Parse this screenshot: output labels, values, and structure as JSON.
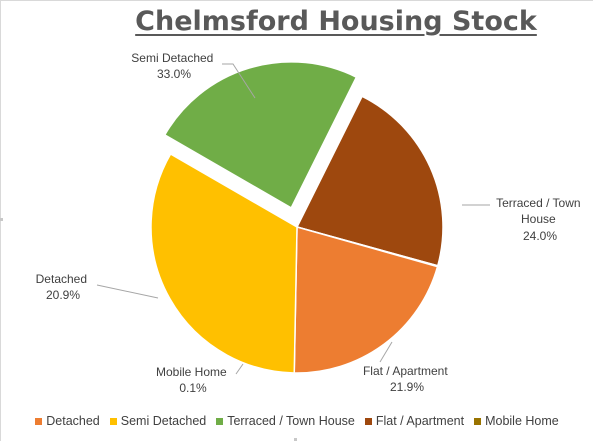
{
  "chart_data": {
    "type": "pie",
    "title": "Chelmsford Housing Stock",
    "slices": [
      {
        "label": "Detached",
        "value": 20.9,
        "value_label": "20.9%",
        "color": "#ED7D31"
      },
      {
        "label": "Semi Detached",
        "value": 33.0,
        "value_label": "33.0%",
        "color": "#FFC000"
      },
      {
        "label": "Terraced / Town House",
        "value": 24.0,
        "value_label": "24.0%",
        "color": "#70AD47",
        "exploded": true
      },
      {
        "label": "Flat / Apartment",
        "value": 21.9,
        "value_label": "21.9%",
        "color": "#9E480E"
      },
      {
        "label": "Mobile Home",
        "value": 0.1,
        "value_label": "0.1%",
        "color": "#997300"
      }
    ],
    "data_labels": {
      "semi": [
        "Semi Detached",
        "33.0%"
      ],
      "terraced": [
        "Terraced / Town",
        "House",
        "24.0%"
      ],
      "flat": [
        "Flat / Apartment",
        "21.9%"
      ],
      "mobile": [
        "Mobile Home",
        "0.1%"
      ],
      "detached": [
        "Detached",
        "20.9%"
      ]
    },
    "legend_position": "bottom",
    "start_angle_deg": 300,
    "direction": "clockwise"
  }
}
